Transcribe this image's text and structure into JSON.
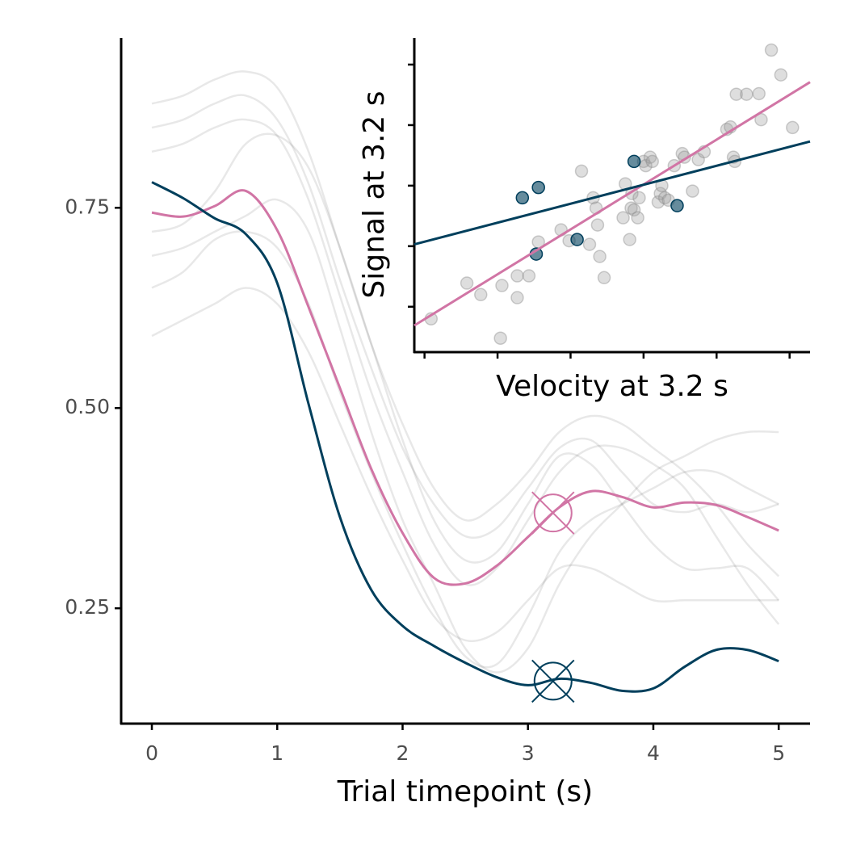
{
  "chart_data": [
    {
      "type": "line",
      "x_label": "Trial timepoint (s)",
      "x": [
        0,
        0.25,
        0.5,
        0.75,
        1,
        1.25,
        1.5,
        1.75,
        2,
        2.25,
        2.5,
        2.75,
        3,
        3.25,
        3.5,
        3.75,
        4,
        4.25,
        4.5,
        4.75,
        5
      ],
      "xlim": [
        -0.245,
        5.25
      ],
      "xticks": [
        0,
        1,
        2,
        3,
        4,
        5
      ],
      "ylim": [
        0.106,
        0.962
      ],
      "yticks": [
        {
          "value": 0.25,
          "label": "0.25"
        },
        {
          "value": 0.5,
          "label": "0.50"
        },
        0.75
      ],
      "highlight_x": 3.2,
      "series": [
        {
          "color": "rgba(0,0,0,0.09)",
          "values": [
            0.88,
            0.89,
            0.91,
            0.92,
            0.9,
            0.82,
            0.7,
            0.58,
            0.48,
            0.4,
            0.36,
            0.38,
            0.42,
            0.47,
            0.49,
            0.48,
            0.45,
            0.42,
            0.38,
            0.33,
            0.29
          ]
        },
        {
          "color": "rgba(0,0,0,0.09)",
          "values": [
            0.85,
            0.86,
            0.88,
            0.89,
            0.86,
            0.78,
            0.66,
            0.55,
            0.45,
            0.38,
            0.34,
            0.35,
            0.4,
            0.45,
            0.46,
            0.42,
            0.38,
            0.37,
            0.38,
            0.37,
            0.38
          ]
        },
        {
          "color": "rgba(0,0,0,0.09)",
          "values": [
            0.82,
            0.83,
            0.85,
            0.86,
            0.84,
            0.76,
            0.64,
            0.52,
            0.42,
            0.33,
            0.28,
            0.3,
            0.36,
            0.42,
            0.45,
            0.45,
            0.43,
            0.4,
            0.34,
            0.28,
            0.23
          ]
        },
        {
          "color": "rgba(0,0,0,0.09)",
          "values": [
            0.72,
            0.73,
            0.77,
            0.83,
            0.84,
            0.8,
            0.7,
            0.58,
            0.46,
            0.36,
            0.31,
            0.32,
            0.38,
            0.44,
            0.43,
            0.38,
            0.33,
            0.3,
            0.3,
            0.3,
            0.26
          ]
        },
        {
          "color": "rgba(0,0,0,0.09)",
          "values": [
            0.69,
            0.7,
            0.72,
            0.74,
            0.76,
            0.72,
            0.6,
            0.47,
            0.36,
            0.28,
            0.2,
            0.17,
            0.2,
            0.28,
            0.34,
            0.38,
            0.42,
            0.44,
            0.46,
            0.47,
            0.47
          ]
        },
        {
          "color": "rgba(0,0,0,0.09)",
          "values": [
            0.65,
            0.67,
            0.71,
            0.72,
            0.7,
            0.63,
            0.52,
            0.42,
            0.33,
            0.25,
            0.19,
            0.18,
            0.24,
            0.32,
            0.36,
            0.38,
            0.4,
            0.42,
            0.42,
            0.4,
            0.38
          ]
        },
        {
          "color": "rgba(0,0,0,0.09)",
          "values": [
            0.59,
            0.61,
            0.63,
            0.65,
            0.63,
            0.57,
            0.48,
            0.39,
            0.31,
            0.24,
            0.21,
            0.22,
            0.26,
            0.3,
            0.3,
            0.28,
            0.26,
            0.26,
            0.26,
            0.26,
            0.26
          ]
        },
        {
          "color": "#d175a5",
          "highlight": 0.369,
          "values": [
            0.744,
            0.739,
            0.752,
            0.771,
            0.722,
            0.626,
            0.525,
            0.424,
            0.344,
            0.288,
            0.281,
            0.303,
            0.339,
            0.376,
            0.396,
            0.389,
            0.376,
            0.382,
            0.379,
            0.364,
            0.347
          ]
        },
        {
          "color": "#003f5c",
          "highlight": 0.159,
          "values": [
            0.782,
            0.762,
            0.737,
            0.717,
            0.656,
            0.505,
            0.364,
            0.273,
            0.228,
            0.203,
            0.182,
            0.164,
            0.154,
            0.162,
            0.157,
            0.147,
            0.15,
            0.177,
            0.198,
            0.198,
            0.184
          ]
        }
      ]
    },
    {
      "type": "scatter",
      "x_label": "Velocity at 3.2 s",
      "y_label": "Signal at 3.2 s",
      "xlim": [
        -0.14,
        5.28
      ],
      "xticks": [
        0,
        1,
        2,
        3,
        4,
        5
      ],
      "ylim": [
        -0.75,
        4.44
      ],
      "yticks": [
        0,
        1,
        2,
        3,
        4
      ],
      "show_tick_labels": false,
      "series": [
        {
          "color": "#a0a0a0",
          "x": [
            0.09,
            0.58,
            0.77,
            1.04,
            1.06,
            1.27,
            1.27,
            1.43,
            1.56,
            1.87,
            1.98,
            2.15,
            2.26,
            2.31,
            2.35,
            2.37,
            2.4,
            2.46,
            2.72,
            2.75,
            2.81,
            2.83,
            2.84,
            2.87,
            2.92,
            2.94,
            3.0,
            3.03,
            3.09,
            3.12,
            3.2,
            3.23,
            3.25,
            3.29,
            3.34,
            3.42,
            3.53,
            3.56,
            3.67,
            3.75,
            3.83,
            4.14,
            4.19,
            4.23,
            4.25,
            4.27,
            4.41,
            4.58,
            4.61,
            4.75,
            4.88,
            5.04
          ],
          "values": [
            -0.2,
            0.39,
            0.2,
            -0.52,
            0.35,
            0.51,
            0.15,
            0.51,
            1.07,
            1.27,
            1.09,
            2.24,
            1.03,
            1.8,
            1.63,
            1.35,
            0.83,
            0.48,
            1.47,
            2.03,
            1.11,
            1.63,
            1.87,
            1.6,
            1.47,
            1.8,
            2.4,
            2.33,
            2.47,
            2.4,
            1.73,
            1.87,
            2.0,
            1.8,
            1.76,
            2.33,
            2.53,
            2.47,
            1.91,
            2.43,
            2.56,
            2.93,
            2.97,
            2.47,
            2.4,
            3.51,
            3.51,
            3.52,
            3.09,
            4.24,
            3.83,
            2.96
          ]
        },
        {
          "color": "#003f5c",
          "x": [
            1.34,
            1.56,
            1.53,
            2.09,
            2.87,
            3.46
          ],
          "values": [
            1.8,
            1.97,
            0.87,
            1.11,
            2.4,
            1.67
          ]
        }
      ],
      "lines": [
        {
          "color": "#d175a5",
          "x": [
            -0.14,
            5.28
          ],
          "values": [
            -0.31,
            3.71
          ]
        },
        {
          "color": "#003f5c",
          "x": [
            -0.14,
            5.28
          ],
          "values": [
            1.03,
            2.73
          ]
        }
      ]
    }
  ]
}
